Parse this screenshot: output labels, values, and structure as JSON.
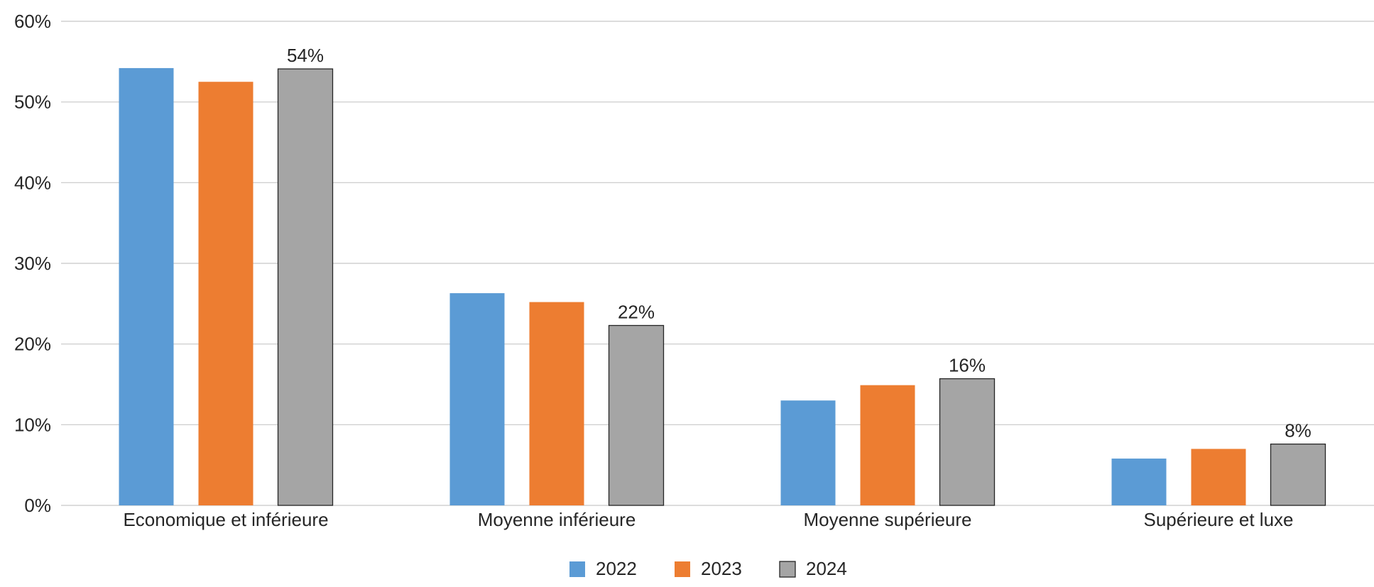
{
  "chart_data": {
    "type": "bar",
    "title": "",
    "xlabel": "",
    "ylabel": "",
    "ylim": [
      0,
      60
    ],
    "yticks": [
      0,
      10,
      20,
      30,
      40,
      50,
      60
    ],
    "ytick_format": "percent",
    "grid": "horizontal",
    "legend_position": "bottom",
    "categories": [
      "Economique et inférieure",
      "Moyenne inférieure",
      "Moyenne supérieure",
      "Supérieure et luxe"
    ],
    "series": [
      {
        "name": "2022",
        "color": "#5B9BD5",
        "values": [
          54.2,
          26.3,
          13.0,
          5.8
        ]
      },
      {
        "name": "2023",
        "color": "#ED7D31",
        "values": [
          52.5,
          25.2,
          14.9,
          7.0
        ]
      },
      {
        "name": "2024",
        "color": "#A5A5A5",
        "outline": "#262626",
        "values": [
          54.1,
          22.3,
          15.7,
          7.6
        ],
        "data_labels": [
          "54%",
          "22%",
          "16%",
          "8%"
        ]
      }
    ]
  }
}
